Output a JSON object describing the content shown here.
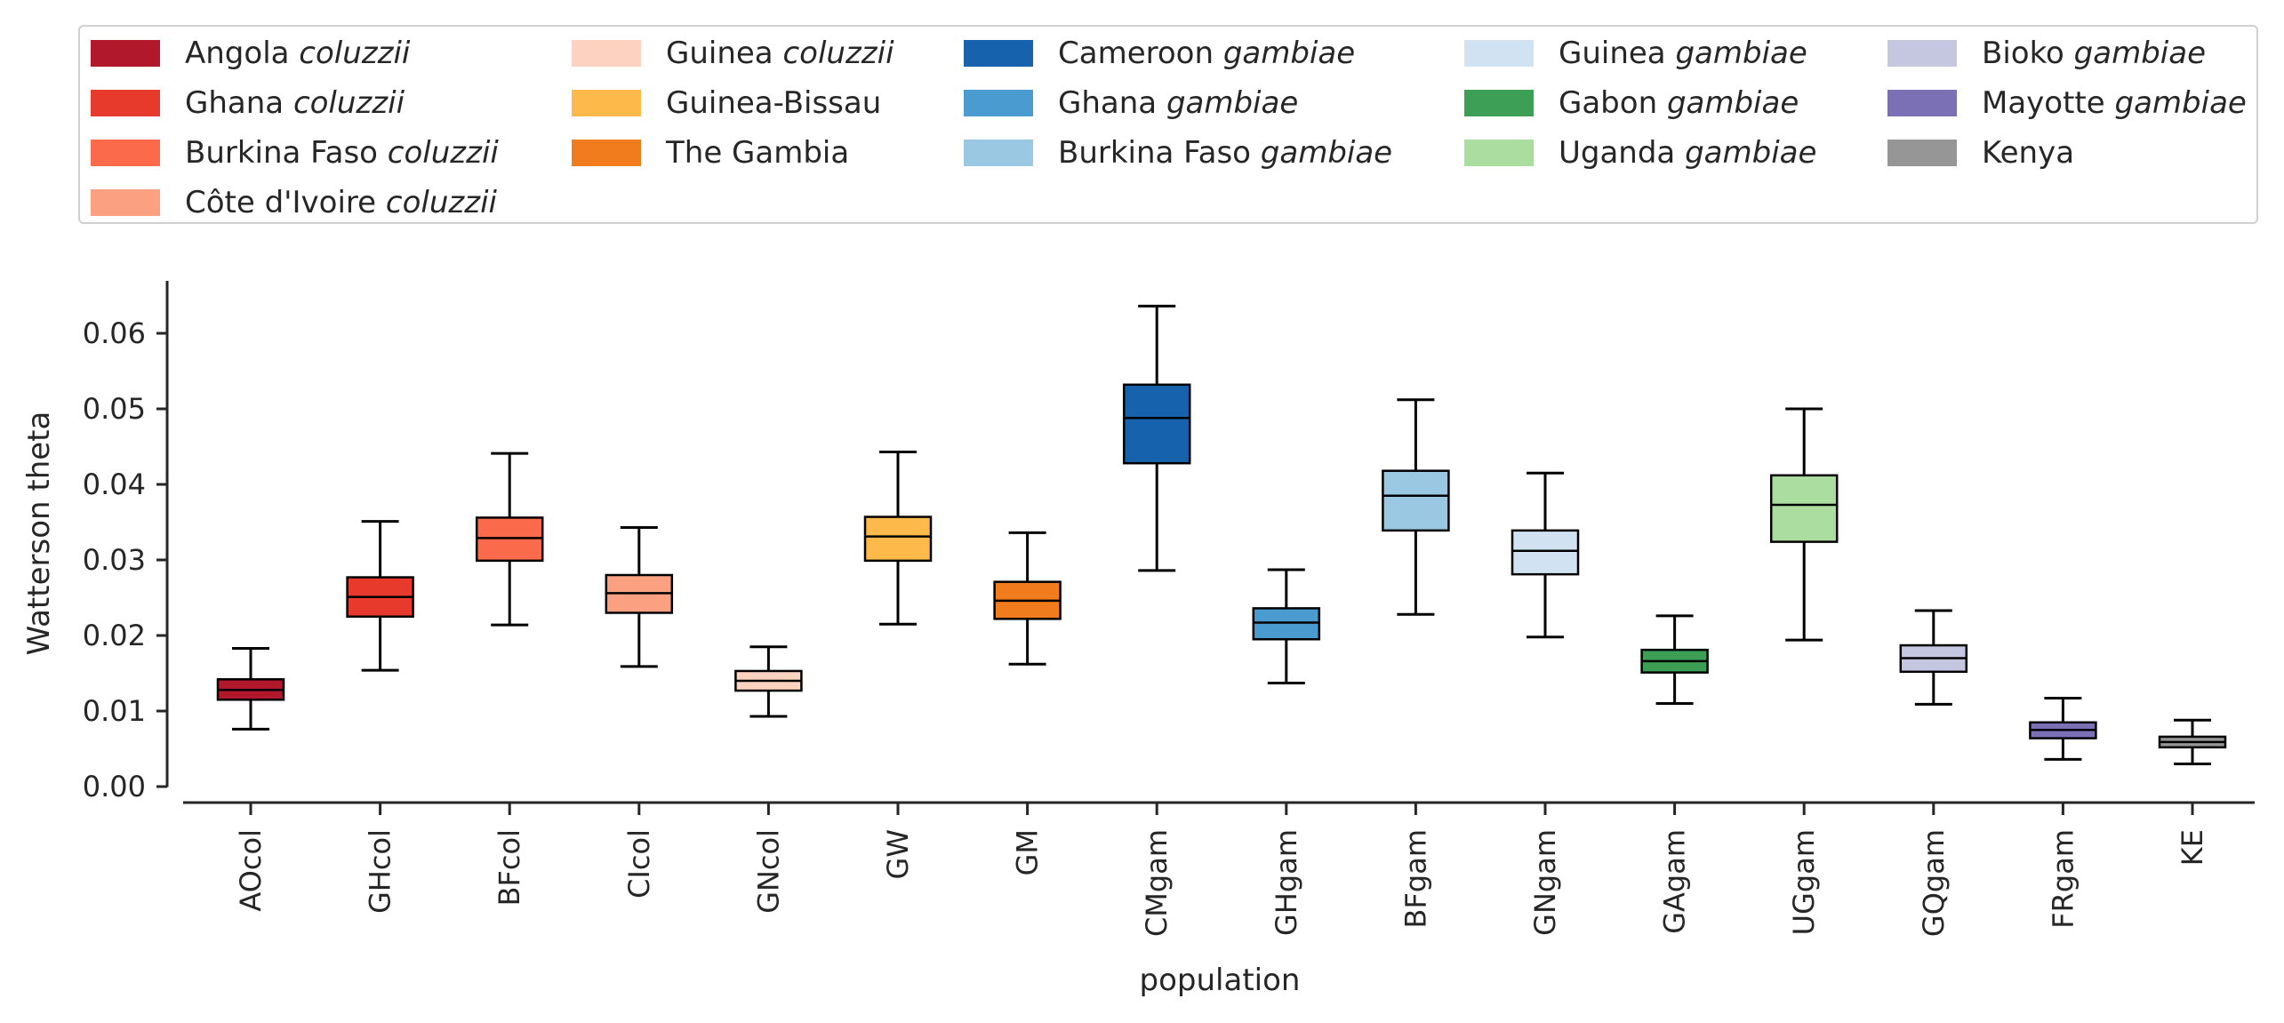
{
  "chart_data": {
    "type": "box",
    "xlabel": "population",
    "ylabel": "Watterson theta",
    "ylim": [
      0.0,
      0.066
    ],
    "yticks": [
      "0.00",
      "0.01",
      "0.02",
      "0.03",
      "0.04",
      "0.05",
      "0.06"
    ],
    "ytick_values": [
      0.0,
      0.01,
      0.02,
      0.03,
      0.04,
      0.05,
      0.06
    ],
    "grid": false,
    "legend_position": "top",
    "categories": [
      "AOcol",
      "GHcol",
      "BFcol",
      "CIcol",
      "GNcol",
      "GW",
      "GM",
      "CMgam",
      "GHgam",
      "BFgam",
      "GNgam",
      "GAgam",
      "UGgam",
      "GQgam",
      "FRgam",
      "KE"
    ],
    "boxes": [
      {
        "label": "AOcol",
        "whisker_low": 0.0076,
        "q1": 0.0115,
        "median": 0.0128,
        "q3": 0.0142,
        "whisker_high": 0.0183,
        "color": "#b2182b"
      },
      {
        "label": "GHcol",
        "whisker_low": 0.0154,
        "q1": 0.0225,
        "median": 0.0251,
        "q3": 0.0277,
        "whisker_high": 0.0351,
        "color": "#e8392d"
      },
      {
        "label": "BFcol",
        "whisker_low": 0.0214,
        "q1": 0.0299,
        "median": 0.0329,
        "q3": 0.0356,
        "whisker_high": 0.0441,
        "color": "#fb6a4a"
      },
      {
        "label": "CIcol",
        "whisker_low": 0.0159,
        "q1": 0.023,
        "median": 0.0256,
        "q3": 0.028,
        "whisker_high": 0.0343,
        "color": "#fca082"
      },
      {
        "label": "GNcol",
        "whisker_low": 0.0093,
        "q1": 0.0127,
        "median": 0.014,
        "q3": 0.0153,
        "whisker_high": 0.0185,
        "color": "#fdd2c1"
      },
      {
        "label": "GW",
        "whisker_low": 0.0215,
        "q1": 0.0299,
        "median": 0.0331,
        "q3": 0.0357,
        "whisker_high": 0.0443,
        "color": "#fdb94a"
      },
      {
        "label": "GM",
        "whisker_low": 0.0162,
        "q1": 0.0222,
        "median": 0.0246,
        "q3": 0.0271,
        "whisker_high": 0.0336,
        "color": "#f07c1e"
      },
      {
        "label": "CMgam",
        "whisker_low": 0.0286,
        "q1": 0.0428,
        "median": 0.0488,
        "q3": 0.0532,
        "whisker_high": 0.0636,
        "color": "#1762ad"
      },
      {
        "label": "GHgam",
        "whisker_low": 0.0137,
        "q1": 0.0195,
        "median": 0.0217,
        "q3": 0.0236,
        "whisker_high": 0.0287,
        "color": "#4a9bd0"
      },
      {
        "label": "BFgam",
        "whisker_low": 0.0228,
        "q1": 0.0339,
        "median": 0.0385,
        "q3": 0.0418,
        "whisker_high": 0.0512,
        "color": "#9ac8e2"
      },
      {
        "label": "GNgam",
        "whisker_low": 0.0198,
        "q1": 0.0281,
        "median": 0.0312,
        "q3": 0.0339,
        "whisker_high": 0.0415,
        "color": "#d1e3f2"
      },
      {
        "label": "GAgam",
        "whisker_low": 0.011,
        "q1": 0.0151,
        "median": 0.0166,
        "q3": 0.0181,
        "whisker_high": 0.0226,
        "color": "#3d9e55"
      },
      {
        "label": "UGgam",
        "whisker_low": 0.0194,
        "q1": 0.0324,
        "median": 0.0373,
        "q3": 0.0412,
        "whisker_high": 0.05,
        "color": "#acdda0"
      },
      {
        "label": "GQgam",
        "whisker_low": 0.0109,
        "q1": 0.0152,
        "median": 0.017,
        "q3": 0.0187,
        "whisker_high": 0.0233,
        "color": "#c5c7e0"
      },
      {
        "label": "FRgam",
        "whisker_low": 0.0036,
        "q1": 0.0064,
        "median": 0.0075,
        "q3": 0.0085,
        "whisker_high": 0.0117,
        "color": "#7b6fb6"
      },
      {
        "label": "KE",
        "whisker_low": 0.003,
        "q1": 0.0052,
        "median": 0.0059,
        "q3": 0.0066,
        "whisker_high": 0.0088,
        "color": "#969696"
      }
    ],
    "legend": [
      {
        "place": "Angola",
        "taxon": "coluzzii",
        "color": "#b2182b"
      },
      {
        "place": "Ghana",
        "taxon": "coluzzii",
        "color": "#e8392d"
      },
      {
        "place": "Burkina Faso",
        "taxon": "coluzzii",
        "color": "#fb6a4a"
      },
      {
        "place": "Côte d'Ivoire",
        "taxon": "coluzzii",
        "color": "#fca082"
      },
      {
        "place": "Guinea",
        "taxon": "coluzzii",
        "color": "#fdd2c1"
      },
      {
        "place": "Guinea-Bissau",
        "taxon": "",
        "color": "#fdb94a"
      },
      {
        "place": "The Gambia",
        "taxon": "",
        "color": "#f07c1e"
      },
      {
        "place": "Cameroon",
        "taxon": "gambiae",
        "color": "#1762ad"
      },
      {
        "place": "Ghana",
        "taxon": "gambiae",
        "color": "#4a9bd0"
      },
      {
        "place": "Burkina Faso",
        "taxon": "gambiae",
        "color": "#9ac8e2"
      },
      {
        "place": "Guinea",
        "taxon": "gambiae",
        "color": "#d1e3f2"
      },
      {
        "place": "Gabon",
        "taxon": "gambiae",
        "color": "#3d9e55"
      },
      {
        "place": "Uganda",
        "taxon": "gambiae",
        "color": "#acdda0"
      },
      {
        "place": "Bioko",
        "taxon": "gambiae",
        "color": "#c5c7e0"
      },
      {
        "place": "Mayotte",
        "taxon": "gambiae",
        "color": "#7b6fb6"
      },
      {
        "place": "Kenya",
        "taxon": "",
        "color": "#969696"
      }
    ]
  }
}
